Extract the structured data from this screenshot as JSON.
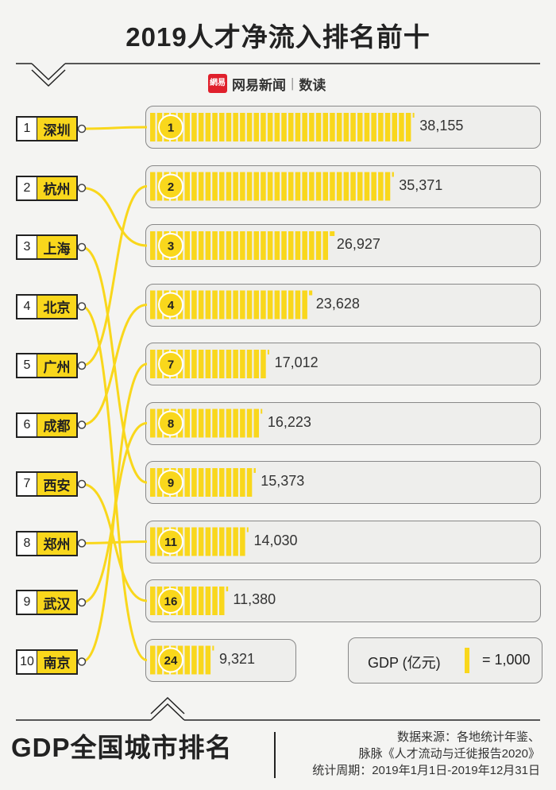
{
  "header": {
    "title": "2019人才净流入排名前十"
  },
  "brand": {
    "logo_text": "網易",
    "name": "网易新闻",
    "separator": "|",
    "section": "数读"
  },
  "colors": {
    "accent": "#f9d71c",
    "line": "#222222"
  },
  "ranks": [
    {
      "number": "1",
      "city": "深圳"
    },
    {
      "number": "2",
      "city": "杭州"
    },
    {
      "number": "3",
      "city": "上海"
    },
    {
      "number": "4",
      "city": "北京"
    },
    {
      "number": "5",
      "city": "广州"
    },
    {
      "number": "6",
      "city": "成都"
    },
    {
      "number": "7",
      "city": "西安"
    },
    {
      "number": "8",
      "city": "郑州"
    },
    {
      "number": "9",
      "city": "武汉"
    },
    {
      "number": "10",
      "city": "南京"
    }
  ],
  "chart_data": {
    "type": "bar",
    "unit_value": 1000,
    "bars": [
      {
        "gdp_rank": "1",
        "value": 38155,
        "label": "38,155",
        "city": "深圳"
      },
      {
        "gdp_rank": "2",
        "value": 35371,
        "label": "35,371",
        "city": "广州"
      },
      {
        "gdp_rank": "3",
        "value": 26927,
        "label": "26,927",
        "city": "杭州"
      },
      {
        "gdp_rank": "4",
        "value": 23628,
        "label": "23,628",
        "city": "成都"
      },
      {
        "gdp_rank": "7",
        "value": 17012,
        "label": "17,012",
        "city": "南京"
      },
      {
        "gdp_rank": "8",
        "value": 16223,
        "label": "16,223",
        "city": "武汉"
      },
      {
        "gdp_rank": "9",
        "value": 15373,
        "label": "15,373",
        "city": "上海"
      },
      {
        "gdp_rank": "11",
        "value": 14030,
        "label": "14,030",
        "city": "郑州"
      },
      {
        "gdp_rank": "16",
        "value": 11380,
        "label": "11,380",
        "city": "西安"
      },
      {
        "gdp_rank": "24",
        "value": 9321,
        "label": "9,321",
        "city": "北京"
      }
    ]
  },
  "legend": {
    "label": "GDP (亿元)",
    "equals": "= 1,000"
  },
  "footer": {
    "title": "GDP全国城市排名",
    "source_lines": [
      "数据来源：各地统计年鉴、",
      "脉脉《人才流动与迁徙报告2020》",
      "统计周期：2019年1月1日-2019年12月31日"
    ]
  }
}
